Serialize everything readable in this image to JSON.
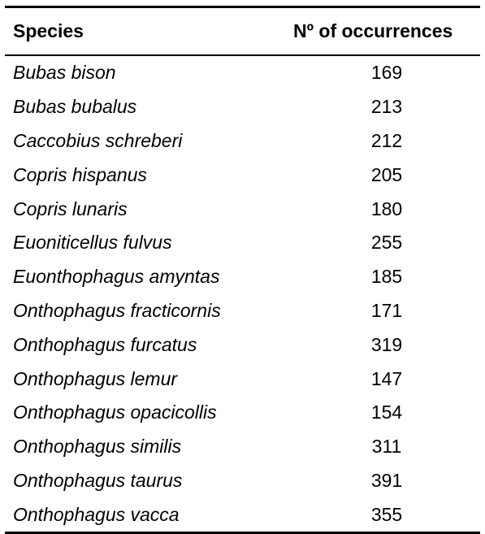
{
  "table": {
    "headers": {
      "species": "Species",
      "count": "Nº of occurrences"
    },
    "rows": [
      {
        "species": "Bubas bison",
        "count": "169"
      },
      {
        "species": "Bubas bubalus",
        "count": "213"
      },
      {
        "species": "Caccobius schreberi",
        "count": "212"
      },
      {
        "species": "Copris hispanus",
        "count": "205"
      },
      {
        "species": "Copris lunaris",
        "count": "180"
      },
      {
        "species": "Euoniticellus fulvus",
        "count": "255"
      },
      {
        "species": "Euonthophagus amyntas",
        "count": "185"
      },
      {
        "species": "Onthophagus fracticornis",
        "count": "171"
      },
      {
        "species": "Onthophagus furcatus",
        "count": "319"
      },
      {
        "species": "Onthophagus lemur",
        "count": "147"
      },
      {
        "species": "Onthophagus opacicollis",
        "count": "154"
      },
      {
        "species": "Onthophagus similis",
        "count": "311"
      },
      {
        "species": "Onthophagus taurus",
        "count": "391"
      },
      {
        "species": "Onthophagus vacca",
        "count": "355"
      }
    ]
  }
}
